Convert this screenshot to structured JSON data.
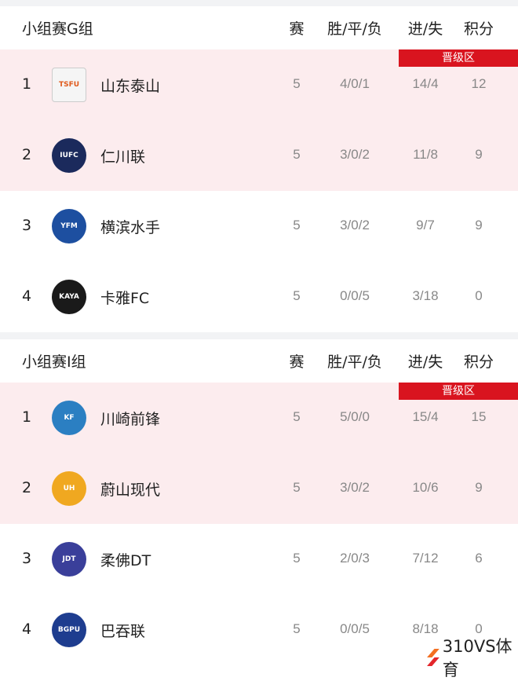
{
  "headers": {
    "played": "赛",
    "wdl": "胜/平/负",
    "gf_ga": "进/失",
    "points": "积分",
    "qualify_badge": "晋级区"
  },
  "groups": [
    {
      "title": "小组赛G组",
      "rows": [
        {
          "rank": "1",
          "team": "山东泰山",
          "logo": "TSFU",
          "color": "#f5f5f5",
          "p": "5",
          "wdl": "4/0/1",
          "g": "14/4",
          "pts": "12"
        },
        {
          "rank": "2",
          "team": "仁川联",
          "logo": "IUFC",
          "color": "#1b2a5c",
          "p": "5",
          "wdl": "3/0/2",
          "g": "11/8",
          "pts": "9"
        },
        {
          "rank": "3",
          "team": "横滨水手",
          "logo": "YFM",
          "color": "#1d4fa0",
          "p": "5",
          "wdl": "3/0/2",
          "g": "9/7",
          "pts": "9"
        },
        {
          "rank": "4",
          "team": "卡雅FC",
          "logo": "KAYA",
          "color": "#1a1a1a",
          "p": "5",
          "wdl": "0/0/5",
          "g": "3/18",
          "pts": "0"
        }
      ]
    },
    {
      "title": "小组赛I组",
      "rows": [
        {
          "rank": "1",
          "team": "川崎前锋",
          "logo": "KF",
          "color": "#2b7fc2",
          "p": "5",
          "wdl": "5/0/0",
          "g": "15/4",
          "pts": "15"
        },
        {
          "rank": "2",
          "team": "蔚山现代",
          "logo": "UH",
          "color": "#f0a820",
          "p": "5",
          "wdl": "3/0/2",
          "g": "10/6",
          "pts": "9"
        },
        {
          "rank": "3",
          "team": "柔佛DT",
          "logo": "JDT",
          "color": "#3a3f9a",
          "p": "5",
          "wdl": "2/0/3",
          "g": "7/12",
          "pts": "6"
        },
        {
          "rank": "4",
          "team": "巴吞联",
          "logo": "BGPU",
          "color": "#1e3d8f",
          "p": "5",
          "wdl": "0/0/5",
          "g": "8/18",
          "pts": "0"
        }
      ]
    }
  ],
  "watermark": "310VS体育"
}
